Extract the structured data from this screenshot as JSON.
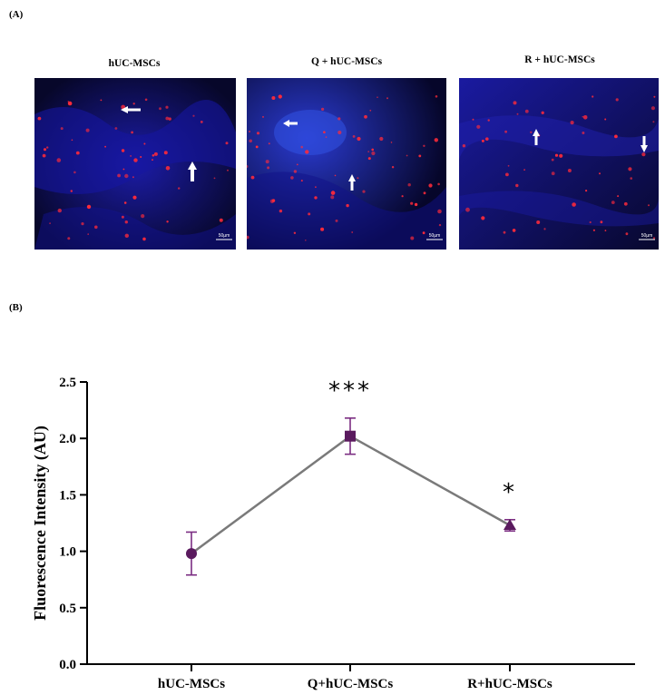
{
  "panel_a": {
    "label": "(A)",
    "images": [
      {
        "title": "hUC-MSCs",
        "scale_label": "50µm",
        "arrows": [
          "left-arrow-icon",
          "up-arrow-icon"
        ]
      },
      {
        "title": "Q + hUC-MSCs",
        "scale_label": "50µm",
        "arrows": [
          "left-arrow-icon",
          "up-arrow-icon"
        ]
      },
      {
        "title": "R + hUC-MSCs",
        "scale_label": "50µm",
        "arrows": [
          "up-arrow-icon",
          "down-arrow-icon"
        ]
      }
    ],
    "colors": {
      "nuclei": "#1a1ac8",
      "marker": "#ff2a3a",
      "background": "#050520"
    }
  },
  "panel_b": {
    "label": "(B)"
  },
  "chart_data": {
    "type": "line",
    "categories": [
      "hUC-MSCs",
      "Q+hUC-MSCs",
      "R+hUC-MSCs"
    ],
    "values": [
      0.98,
      2.02,
      1.23
    ],
    "errors": [
      0.19,
      0.16,
      0.05
    ],
    "markers": [
      "circle",
      "square",
      "triangle"
    ],
    "significance": [
      "",
      "***",
      "*"
    ],
    "title": "",
    "xlabel": "",
    "ylabel": "Fluorescence Intensity (AU)",
    "ylim": [
      0,
      2.5
    ],
    "yticks": [
      0.0,
      0.5,
      1.0,
      1.5,
      2.0,
      2.5
    ],
    "ytick_labels": [
      "0.0",
      "0.5",
      "1.0",
      "1.5",
      "2.0",
      "2.5"
    ],
    "grid": false,
    "legend": "none",
    "colors": {
      "line": "#7a7a7a",
      "marker": "#5a1a5e",
      "errorbar": "#7b2d82",
      "axis": "#000000"
    }
  }
}
